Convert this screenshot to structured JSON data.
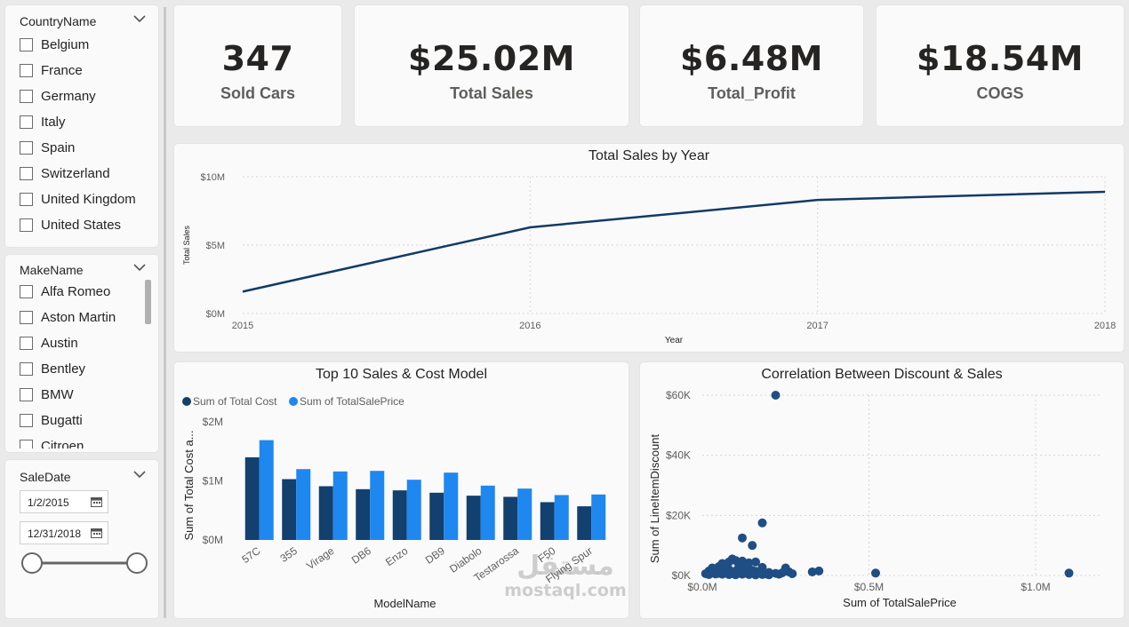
{
  "country_slicer": {
    "title": "CountryName",
    "items": [
      "Belgium",
      "France",
      "Germany",
      "Italy",
      "Spain",
      "Switzerland",
      "United Kingdom",
      "United States"
    ]
  },
  "make_slicer": {
    "title": "MakeName",
    "items": [
      "Alfa Romeo",
      "Aston Martin",
      "Austin",
      "Bentley",
      "BMW",
      "Bugatti",
      "Citroen"
    ]
  },
  "date_slicer": {
    "title": "SaleDate",
    "start": "1/2/2015",
    "end": "12/31/2018"
  },
  "kpis": [
    {
      "value": "347",
      "label": "Sold Cars"
    },
    {
      "value": "$25.02M",
      "label": "Total Sales"
    },
    {
      "value": "$6.48M",
      "label": "Total_Profit"
    },
    {
      "value": "$18.54M",
      "label": "COGS"
    }
  ],
  "colors": {
    "line": "#123a68",
    "dark_bar": "#12406f",
    "light_bar": "#1f87f0",
    "scatter": "#1f4e85",
    "axis_text": "#605e5c"
  },
  "chart_data": [
    {
      "type": "line",
      "title": "Total Sales by Year",
      "xlabel": "Year",
      "ylabel": "Total Sales",
      "x": [
        "2015",
        "2016",
        "2017",
        "2018"
      ],
      "series": [
        {
          "values": [
            1.6,
            6.3,
            8.3,
            8.9
          ]
        }
      ],
      "yticks": [
        "$0M",
        "$5M",
        "$10M"
      ],
      "ylim": [
        0,
        10
      ],
      "grid": true
    },
    {
      "type": "bar",
      "title": "Top 10 Sales & Cost Model",
      "xlabel": "ModelName",
      "ylabel": "Sum of Total Cost a...",
      "categories": [
        "57C",
        "355",
        "Virage",
        "DB6",
        "Enzo",
        "DB9",
        "Diabolo",
        "Testarossa",
        "F50",
        "Flying Spur"
      ],
      "series": [
        {
          "name": "Sum of Total Cost",
          "values": [
            1.4,
            1.03,
            0.91,
            0.86,
            0.84,
            0.8,
            0.75,
            0.73,
            0.64,
            0.57
          ]
        },
        {
          "name": "Sum of TotalSalePrice",
          "values": [
            1.69,
            1.2,
            1.16,
            1.17,
            1.02,
            1.14,
            0.92,
            0.87,
            0.76,
            0.77
          ]
        }
      ],
      "yticks": [
        "$0M",
        "$1M",
        "$2M"
      ],
      "ylim": [
        0,
        2
      ],
      "legend": "top-left"
    },
    {
      "type": "scatter",
      "title": "Correlation Between Discount & Sales",
      "xlabel": "Sum of TotalSalePrice",
      "ylabel": "Sum of LineItemDiscount",
      "xticks": [
        "$0.0M",
        "$0.5M",
        "$1.0M"
      ],
      "yticks": [
        "$0K",
        "$20K",
        "$40K",
        "$60K"
      ],
      "xlim": [
        0,
        1.2
      ],
      "ylim": [
        0,
        60000
      ],
      "points": [
        [
          0.22,
          60000
        ],
        [
          0.18,
          17500
        ],
        [
          0.12,
          12500
        ],
        [
          0.15,
          10000
        ],
        [
          0.09,
          5500
        ],
        [
          0.1,
          5000
        ],
        [
          0.12,
          4800
        ],
        [
          0.16,
          4500
        ],
        [
          0.08,
          4500
        ],
        [
          0.06,
          4000
        ],
        [
          0.14,
          4200
        ],
        [
          0.03,
          2500
        ],
        [
          0.05,
          3000
        ],
        [
          0.07,
          3000
        ],
        [
          0.11,
          3200
        ],
        [
          0.13,
          3500
        ],
        [
          0.18,
          2700
        ],
        [
          0.25,
          2500
        ],
        [
          0.33,
          1200
        ],
        [
          0.35,
          1500
        ],
        [
          0.52,
          800
        ],
        [
          1.1,
          800
        ],
        [
          0.02,
          1500
        ],
        [
          0.04,
          1800
        ],
        [
          0.06,
          1200
        ],
        [
          0.08,
          2000
        ],
        [
          0.1,
          1500
        ],
        [
          0.12,
          800
        ],
        [
          0.14,
          1000
        ],
        [
          0.16,
          1400
        ],
        [
          0.2,
          1000
        ],
        [
          0.22,
          700
        ],
        [
          0.24,
          900
        ],
        [
          0.26,
          1200
        ],
        [
          0.01,
          600
        ],
        [
          0.03,
          900
        ],
        [
          0.05,
          700
        ],
        [
          0.07,
          1000
        ],
        [
          0.09,
          600
        ],
        [
          0.11,
          1800
        ],
        [
          0.13,
          1900
        ],
        [
          0.15,
          1700
        ],
        [
          0.17,
          800
        ],
        [
          0.19,
          500
        ],
        [
          0.02,
          300
        ],
        [
          0.04,
          500
        ],
        [
          0.06,
          400
        ],
        [
          0.08,
          300
        ],
        [
          0.1,
          250
        ],
        [
          0.12,
          400
        ],
        [
          0.14,
          300
        ],
        [
          0.16,
          200
        ],
        [
          0.18,
          350
        ],
        [
          0.2,
          250
        ],
        [
          0.23,
          400
        ],
        [
          0.27,
          600
        ]
      ]
    }
  ],
  "watermark": {
    "arabic": "مستقل",
    "latin": "mostaql.com"
  }
}
